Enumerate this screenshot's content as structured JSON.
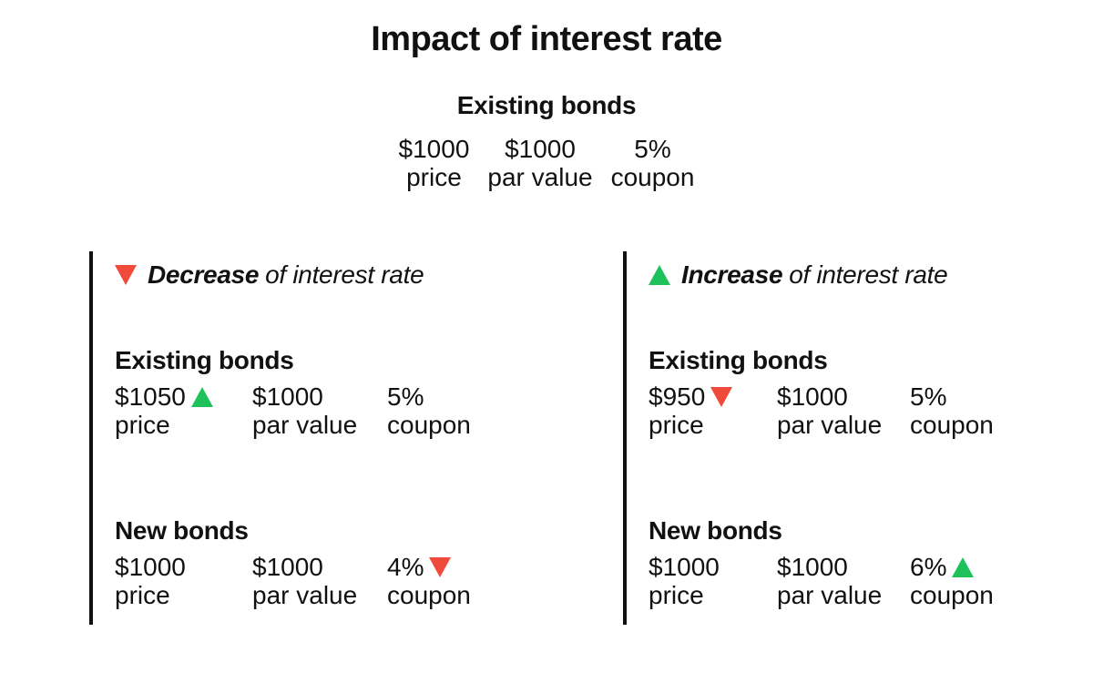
{
  "title": "Impact of interest rate",
  "baseline": {
    "heading": "Existing bonds",
    "items": [
      {
        "value": "$1000",
        "label": "price"
      },
      {
        "value": "$1000",
        "label": "par value"
      },
      {
        "value": "5%",
        "label": "coupon"
      }
    ]
  },
  "decrease": {
    "strong": "Decrease",
    "rest": "of interest rate",
    "arrow": "down",
    "arrow_color": "#f04a3b",
    "existing": {
      "heading": "Existing bonds",
      "items": [
        {
          "value": "$1050",
          "label": "price",
          "arrow": "up"
        },
        {
          "value": "$1000",
          "label": "par value"
        },
        {
          "value": "5%",
          "label": "coupon"
        }
      ]
    },
    "new": {
      "heading": "New bonds",
      "items": [
        {
          "value": "$1000",
          "label": "price"
        },
        {
          "value": "$1000",
          "label": "par value"
        },
        {
          "value": "4%",
          "label": "coupon",
          "arrow": "down"
        }
      ]
    }
  },
  "increase": {
    "strong": "Increase",
    "rest": "of interest rate",
    "arrow": "up",
    "arrow_color": "#1fc25a",
    "existing": {
      "heading": "Existing bonds",
      "items": [
        {
          "value": "$950",
          "label": "price",
          "arrow": "down"
        },
        {
          "value": "$1000",
          "label": "par value"
        },
        {
          "value": "5%",
          "label": "coupon"
        }
      ]
    },
    "new": {
      "heading": "New bonds",
      "items": [
        {
          "value": "$1000",
          "label": "price"
        },
        {
          "value": "$1000",
          "label": "par value"
        },
        {
          "value": "6%",
          "label": "coupon",
          "arrow": "up"
        }
      ]
    }
  }
}
